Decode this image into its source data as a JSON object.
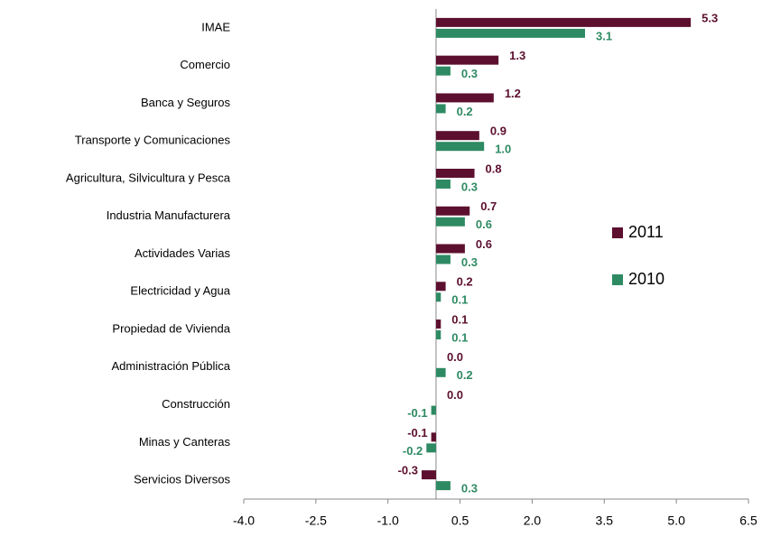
{
  "chart_data": {
    "type": "bar",
    "orientation": "horizontal",
    "categories": [
      "IMAE",
      "Comercio",
      "Banca y Seguros",
      "Transporte y Comunicaciones",
      "Agricultura, Silvicultura y Pesca",
      "Industria Manufacturera",
      "Actividades Varias",
      "Electricidad y Agua",
      "Propiedad de Vivienda",
      "Administración Pública",
      "Construcción",
      "Minas y Canteras",
      "Servicios Diversos"
    ],
    "series": [
      {
        "name": "2011",
        "color": "#5c0f2e",
        "values": [
          5.3,
          1.3,
          1.2,
          0.9,
          0.8,
          0.7,
          0.6,
          0.2,
          0.1,
          0.0,
          0.0,
          -0.1,
          -0.3
        ],
        "value_labels": [
          "5.3",
          "1.3",
          "1.2",
          "0.9",
          "0.8",
          "0.7",
          "0.6",
          "0.2",
          "0.1",
          "0.0",
          "0.0",
          "-0.1",
          "-0.3"
        ]
      },
      {
        "name": "2010",
        "color": "#2e8a63",
        "values": [
          3.1,
          0.3,
          0.2,
          1.0,
          0.3,
          0.6,
          0.3,
          0.1,
          0.1,
          0.2,
          -0.1,
          -0.2,
          0.3
        ],
        "value_labels": [
          "3.1",
          "0.3",
          "0.2",
          "1.0",
          "0.3",
          "0.6",
          "0.3",
          "0.1",
          "0.1",
          "0.2",
          "-0.1",
          "-0.2",
          "0.3"
        ]
      }
    ],
    "xlim": [
      -4.0,
      6.5
    ],
    "xticks": [
      {
        "value": -4.0,
        "label": "-4.0"
      },
      -2.5,
      {
        "value": -1.0,
        "label": "-1.0"
      },
      0.5,
      {
        "value": 2.0,
        "label": "2.0"
      },
      3.5,
      {
        "value": 5.0,
        "label": "5.0"
      },
      6.5
    ],
    "legend": "right"
  }
}
